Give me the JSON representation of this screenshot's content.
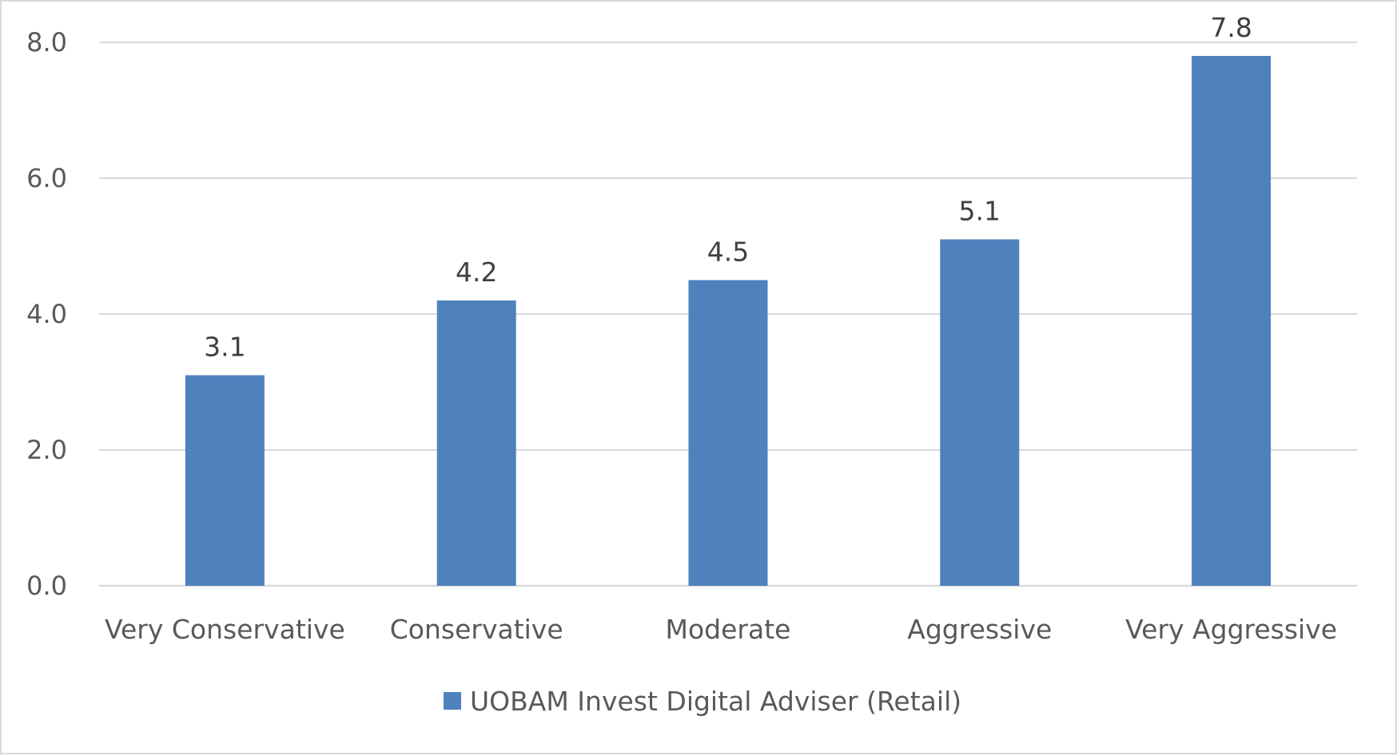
{
  "chart_data": {
    "type": "bar",
    "categories": [
      "Very Conservative",
      "Conservative",
      "Moderate",
      "Aggressive",
      "Very Aggressive"
    ],
    "series": [
      {
        "name": "UOBAM Invest Digital Adviser (Retail)",
        "values": [
          3.1,
          4.2,
          4.5,
          5.1,
          7.8
        ],
        "color": "#4f81bd"
      }
    ],
    "data_labels": [
      "3.1",
      "4.2",
      "4.5",
      "5.1",
      "7.8"
    ],
    "yticks": [
      "0.0",
      "2.0",
      "4.0",
      "6.0",
      "8.0"
    ],
    "ylim": [
      0,
      8
    ],
    "grid": true,
    "legend": "bottom",
    "title": "",
    "xlabel": "",
    "ylabel": ""
  }
}
